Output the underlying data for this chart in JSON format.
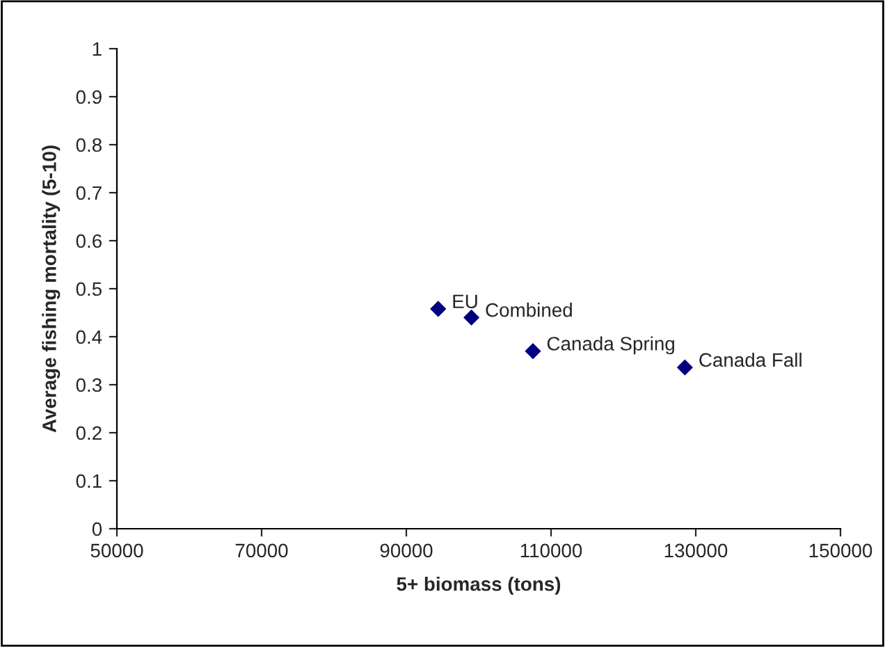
{
  "chart_data": {
    "type": "scatter",
    "xlabel": "5+ biomass (tons)",
    "ylabel": "Average fishing mortality (5-10)",
    "x": [
      94400,
      99000,
      107500,
      128500
    ],
    "series": [
      {
        "color": "#000080",
        "values": [
          0.458,
          0.44,
          0.37,
          0.336
        ]
      }
    ],
    "marker": "diamond",
    "grid": false,
    "legend": false,
    "xlim": [
      50000,
      150000
    ],
    "xticks": [
      50000,
      70000,
      90000,
      110000,
      130000,
      150000
    ],
    "ylim": [
      0,
      1
    ],
    "yticks": [
      0,
      0.1,
      0.2,
      0.3,
      0.4,
      0.5,
      0.6,
      0.7,
      0.8,
      0.9,
      1
    ],
    "annotations": [
      {
        "text": "EU",
        "x": 94400,
        "y": 0.458
      },
      {
        "text": "Combined",
        "x": 99000,
        "y": 0.44
      },
      {
        "text": "Canada Spring",
        "x": 107500,
        "y": 0.37
      },
      {
        "text": "Canada Fall",
        "x": 128500,
        "y": 0.336
      }
    ]
  }
}
